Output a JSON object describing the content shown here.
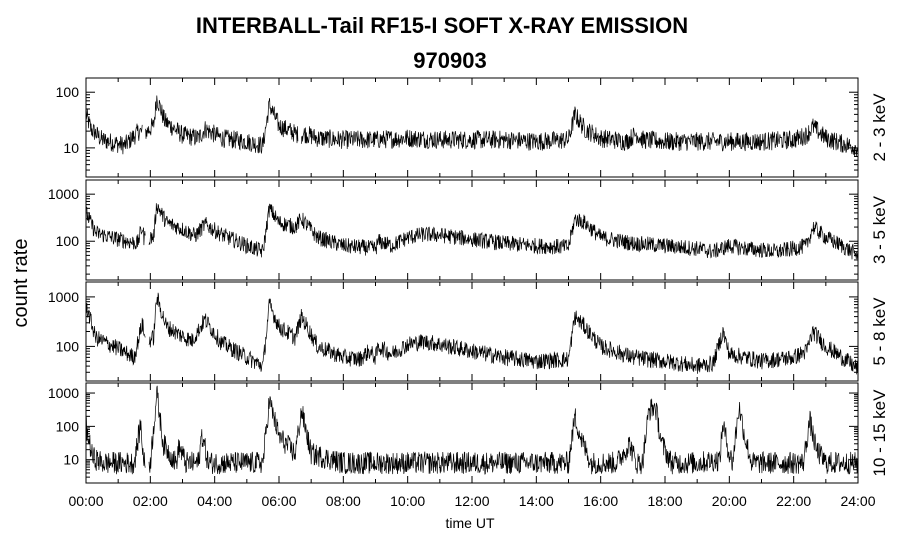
{
  "chart_data": {
    "type": "line",
    "title": "INTERBALL-Tail RF15-I SOFT X-RAY EMISSION",
    "subtitle": "970903",
    "xlabel": "time UT",
    "ylabel": "count rate",
    "x_ticks": [
      "00:00",
      "02:00",
      "04:00",
      "06:00",
      "08:00",
      "10:00",
      "12:00",
      "14:00",
      "16:00",
      "18:00",
      "20:00",
      "22:00",
      "24:00"
    ],
    "xlim_hours": [
      0,
      24
    ],
    "yscale": "log",
    "grid": false,
    "panels": [
      {
        "band": "2 - 3 keV",
        "ylim": [
          3,
          180
        ],
        "y_ticks": [
          {
            "value": 10,
            "label": "10"
          },
          {
            "value": 100,
            "label": "100"
          }
        ],
        "series_points": [
          [
            0.0,
            40
          ],
          [
            0.15,
            22
          ],
          [
            0.5,
            14
          ],
          [
            1.2,
            11
          ],
          [
            1.65,
            20
          ],
          [
            1.8,
            18
          ],
          [
            2.1,
            25
          ],
          [
            2.2,
            80
          ],
          [
            2.45,
            30
          ],
          [
            3.0,
            17
          ],
          [
            3.5,
            15
          ],
          [
            3.7,
            22
          ],
          [
            4.2,
            15
          ],
          [
            5.0,
            13
          ],
          [
            5.5,
            11
          ],
          [
            5.7,
            60
          ],
          [
            6.0,
            25
          ],
          [
            6.6,
            17
          ],
          [
            6.8,
            18
          ],
          [
            7.2,
            15
          ],
          [
            8.0,
            14
          ],
          [
            9.0,
            14
          ],
          [
            10.0,
            15
          ],
          [
            11.0,
            14
          ],
          [
            12.0,
            14
          ],
          [
            13.0,
            14
          ],
          [
            14.0,
            13
          ],
          [
            15.0,
            14
          ],
          [
            15.2,
            40
          ],
          [
            15.5,
            22
          ],
          [
            16.0,
            15
          ],
          [
            16.8,
            13
          ],
          [
            17.1,
            18
          ],
          [
            17.3,
            14
          ],
          [
            18.0,
            13
          ],
          [
            19.0,
            13
          ],
          [
            20.0,
            13
          ],
          [
            21.0,
            13
          ],
          [
            22.0,
            14
          ],
          [
            22.4,
            17
          ],
          [
            22.6,
            24
          ],
          [
            23.0,
            15
          ],
          [
            23.5,
            12
          ],
          [
            24.0,
            10
          ]
        ],
        "gaps_hours": [
          [
            1.75,
            1.85
          ],
          [
            6.6,
            6.68
          ]
        ]
      },
      {
        "band": "3 - 5 keV",
        "ylim": [
          15,
          2000
        ],
        "y_ticks": [
          {
            "value": 100,
            "label": "100"
          },
          {
            "value": 1000,
            "label": "1000"
          }
        ],
        "series_points": [
          [
            0.0,
            400
          ],
          [
            0.3,
            150
          ],
          [
            1.0,
            110
          ],
          [
            1.6,
            90
          ],
          [
            1.75,
            200
          ],
          [
            1.8,
            120
          ],
          [
            2.1,
            120
          ],
          [
            2.2,
            600
          ],
          [
            2.5,
            250
          ],
          [
            3.0,
            180
          ],
          [
            3.4,
            130
          ],
          [
            3.7,
            230
          ],
          [
            4.2,
            140
          ],
          [
            5.0,
            80
          ],
          [
            5.5,
            60
          ],
          [
            5.7,
            500
          ],
          [
            6.0,
            250
          ],
          [
            6.5,
            200
          ],
          [
            6.7,
            300
          ],
          [
            7.2,
            120
          ],
          [
            8.0,
            80
          ],
          [
            9.0,
            70
          ],
          [
            9.1,
            100
          ],
          [
            9.5,
            80
          ],
          [
            10.0,
            120
          ],
          [
            10.5,
            140
          ],
          [
            11.0,
            135
          ],
          [
            12.0,
            110
          ],
          [
            13.0,
            90
          ],
          [
            14.0,
            80
          ],
          [
            15.0,
            75
          ],
          [
            15.2,
            300
          ],
          [
            15.5,
            250
          ],
          [
            16.0,
            120
          ],
          [
            17.0,
            90
          ],
          [
            18.0,
            80
          ],
          [
            19.0,
            70
          ],
          [
            19.5,
            60
          ],
          [
            20.0,
            80
          ],
          [
            20.5,
            70
          ],
          [
            21.0,
            65
          ],
          [
            21.5,
            60
          ],
          [
            22.0,
            70
          ],
          [
            22.4,
            80
          ],
          [
            22.6,
            200
          ],
          [
            23.0,
            120
          ],
          [
            23.5,
            80
          ],
          [
            24.0,
            50
          ]
        ],
        "gaps_hours": [
          [
            1.85,
            1.95
          ]
        ]
      },
      {
        "band": "5 - 8 keV",
        "ylim": [
          20,
          2000
        ],
        "y_ticks": [
          {
            "value": 100,
            "label": "100"
          },
          {
            "value": 1000,
            "label": "1000"
          }
        ],
        "series_points": [
          [
            0.0,
            700
          ],
          [
            0.3,
            150
          ],
          [
            1.0,
            90
          ],
          [
            1.5,
            60
          ],
          [
            1.75,
            300
          ],
          [
            1.85,
            120
          ],
          [
            2.1,
            150
          ],
          [
            2.2,
            1000
          ],
          [
            2.5,
            250
          ],
          [
            3.0,
            160
          ],
          [
            3.3,
            130
          ],
          [
            3.7,
            350
          ],
          [
            4.2,
            120
          ],
          [
            5.0,
            60
          ],
          [
            5.5,
            40
          ],
          [
            5.7,
            700
          ],
          [
            6.0,
            250
          ],
          [
            6.5,
            150
          ],
          [
            6.7,
            400
          ],
          [
            7.2,
            100
          ],
          [
            8.0,
            60
          ],
          [
            8.5,
            55
          ],
          [
            8.8,
            80
          ],
          [
            9.0,
            60
          ],
          [
            9.1,
            100
          ],
          [
            9.5,
            70
          ],
          [
            10.0,
            110
          ],
          [
            10.5,
            125
          ],
          [
            11.0,
            110
          ],
          [
            12.0,
            80
          ],
          [
            13.0,
            60
          ],
          [
            14.0,
            50
          ],
          [
            15.0,
            55
          ],
          [
            15.2,
            400
          ],
          [
            15.5,
            250
          ],
          [
            16.0,
            100
          ],
          [
            17.0,
            60
          ],
          [
            18.0,
            50
          ],
          [
            18.5,
            45
          ],
          [
            19.0,
            40
          ],
          [
            19.5,
            45
          ],
          [
            19.8,
            200
          ],
          [
            20.0,
            70
          ],
          [
            20.5,
            60
          ],
          [
            21.0,
            50
          ],
          [
            21.5,
            55
          ],
          [
            22.0,
            60
          ],
          [
            22.4,
            80
          ],
          [
            22.6,
            200
          ],
          [
            23.0,
            100
          ],
          [
            23.5,
            60
          ],
          [
            24.0,
            35
          ]
        ],
        "gaps_hours": [
          [
            1.85,
            1.95
          ]
        ]
      },
      {
        "band": "10 - 15 keV",
        "ylim": [
          2,
          2000
        ],
        "y_ticks": [
          {
            "value": 10,
            "label": "10"
          },
          {
            "value": 100,
            "label": "100"
          },
          {
            "value": 1000,
            "label": "1000"
          }
        ],
        "series_points": [
          [
            0.0,
            100
          ],
          [
            0.2,
            12
          ],
          [
            0.5,
            8
          ],
          [
            1.5,
            8
          ],
          [
            1.7,
            120
          ],
          [
            1.8,
            8
          ],
          [
            2.0,
            8
          ],
          [
            2.2,
            1000
          ],
          [
            2.4,
            30
          ],
          [
            2.8,
            8
          ],
          [
            2.9,
            25
          ],
          [
            3.1,
            8
          ],
          [
            3.5,
            8
          ],
          [
            3.6,
            60
          ],
          [
            3.8,
            8
          ],
          [
            5.0,
            8
          ],
          [
            5.5,
            8
          ],
          [
            5.7,
            600
          ],
          [
            6.0,
            50
          ],
          [
            6.5,
            15
          ],
          [
            6.7,
            300
          ],
          [
            7.0,
            15
          ],
          [
            8.0,
            8
          ],
          [
            9.0,
            8
          ],
          [
            10.0,
            8
          ],
          [
            11.0,
            8
          ],
          [
            12.0,
            8
          ],
          [
            13.0,
            8
          ],
          [
            14.0,
            8
          ],
          [
            15.0,
            8
          ],
          [
            15.2,
            200
          ],
          [
            15.4,
            40
          ],
          [
            15.7,
            8
          ],
          [
            16.5,
            8
          ],
          [
            16.9,
            30
          ],
          [
            17.1,
            8
          ],
          [
            17.3,
            8
          ],
          [
            17.5,
            300
          ],
          [
            17.7,
            400
          ],
          [
            17.9,
            30
          ],
          [
            18.2,
            8
          ],
          [
            19.0,
            8
          ],
          [
            19.7,
            10
          ],
          [
            19.8,
            120
          ],
          [
            20.0,
            15
          ],
          [
            20.1,
            8
          ],
          [
            20.3,
            400
          ],
          [
            20.5,
            40
          ],
          [
            20.7,
            8
          ],
          [
            21.0,
            8
          ],
          [
            22.0,
            8
          ],
          [
            22.3,
            8
          ],
          [
            22.5,
            150
          ],
          [
            22.7,
            20
          ],
          [
            23.0,
            8
          ],
          [
            24.0,
            8
          ]
        ],
        "gaps_hours": [
          [
            1.85,
            1.95
          ]
        ]
      }
    ]
  }
}
